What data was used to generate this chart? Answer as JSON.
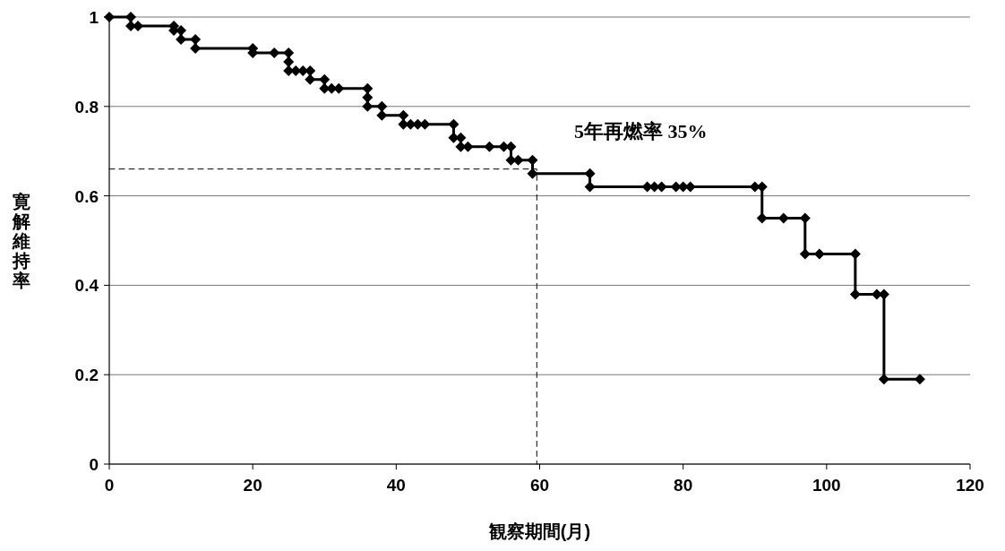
{
  "chart_data": {
    "type": "step",
    "xlabel": "観察期間(月)",
    "ylabel": "寛解維持率",
    "annotations": [
      "5年再燃率  35%"
    ],
    "series": [
      {
        "color": "#000000",
        "marker": "diamond",
        "line_style": "solid",
        "x": [
          0,
          3,
          3,
          4,
          9,
          9,
          10,
          10,
          12,
          12,
          20,
          20,
          23,
          25,
          25,
          25,
          26,
          27,
          28,
          28,
          30,
          30,
          31,
          32,
          36,
          36,
          36,
          38,
          38,
          41,
          41,
          42,
          43,
          44,
          48,
          48,
          49,
          49,
          50,
          53,
          55,
          56,
          56,
          57,
          59,
          59,
          67,
          67,
          75,
          76,
          77,
          79,
          80,
          81,
          90,
          91,
          91,
          94,
          97,
          97,
          99,
          104,
          104,
          107,
          108,
          108,
          113
        ],
        "values": [
          1,
          1,
          0.98,
          0.98,
          0.98,
          0.97,
          0.97,
          0.95,
          0.95,
          0.93,
          0.93,
          0.92,
          0.92,
          0.92,
          0.9,
          0.88,
          0.88,
          0.88,
          0.88,
          0.86,
          0.86,
          0.84,
          0.84,
          0.84,
          0.84,
          0.82,
          0.8,
          0.8,
          0.78,
          0.78,
          0.76,
          0.76,
          0.76,
          0.76,
          0.76,
          0.73,
          0.73,
          0.71,
          0.71,
          0.71,
          0.71,
          0.71,
          0.68,
          0.68,
          0.68,
          0.65,
          0.65,
          0.62,
          0.62,
          0.62,
          0.62,
          0.62,
          0.62,
          0.62,
          0.62,
          0.62,
          0.55,
          0.55,
          0.55,
          0.47,
          0.47,
          0.47,
          0.38,
          0.38,
          0.38,
          0.19,
          0.19
        ]
      },
      {
        "color": "#000000",
        "marker": "none",
        "line_style": "dashed",
        "x": [
          0,
          59.6,
          59.6
        ],
        "values": [
          0.66,
          0.66,
          0
        ]
      }
    ],
    "xlim": [
      0,
      120
    ],
    "xticks": [
      0,
      20,
      40,
      60,
      80,
      100,
      120
    ],
    "ylim": [
      0,
      1
    ],
    "yticks": [
      0,
      0.2,
      0.4,
      0.6,
      0.8,
      1
    ],
    "grid": "y"
  }
}
